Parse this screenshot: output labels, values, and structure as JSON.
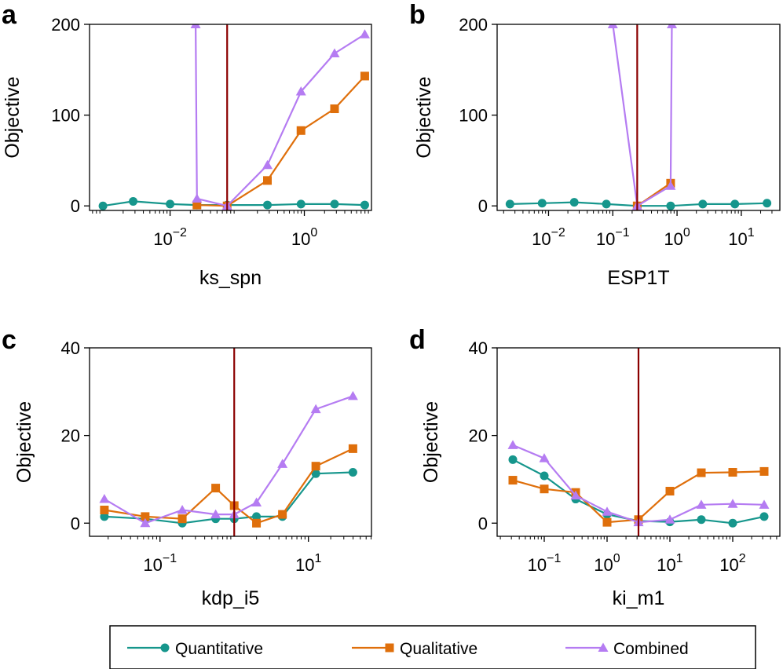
{
  "colors": {
    "quantitative": "#16968c",
    "qualitative": "#df6f0b",
    "combined": "#b57cf2",
    "vline": "#8b0000",
    "axis": "#000000"
  },
  "legend": {
    "entries": [
      {
        "name": "Quantitative",
        "marker": "circle",
        "color": "#16968c"
      },
      {
        "name": "Qualitative",
        "marker": "square",
        "color": "#df6f0b"
      },
      {
        "name": "Combined",
        "marker": "triangle",
        "color": "#b57cf2"
      }
    ]
  },
  "chart_data": [
    {
      "panel": "a",
      "type": "line",
      "xscale": "log",
      "xlabel": "ks_spn",
      "ylabel": "Objective",
      "xlim_log10": [
        -3.2,
        1.0
      ],
      "ylim": [
        -5,
        200
      ],
      "yticks": [
        0,
        100,
        200
      ],
      "xticks": [
        {
          "exp": -2,
          "label": "10^-2"
        },
        {
          "exp": 0,
          "label": "10^0"
        }
      ],
      "vline_log10": -1.15,
      "series": [
        {
          "name": "Quantitative",
          "marker": "circle",
          "x_log10": [
            -3.0,
            -2.55,
            -2.0,
            -1.6,
            -1.15,
            -0.55,
            -0.05,
            0.45,
            0.9
          ],
          "y": [
            0,
            5,
            2,
            1,
            1,
            1,
            2,
            2,
            1
          ]
        },
        {
          "name": "Qualitative",
          "marker": "square",
          "x_log10": [
            -1.6,
            -1.15,
            -0.55,
            -0.05,
            0.45,
            0.9
          ],
          "y": [
            1,
            0,
            28,
            83,
            107,
            143
          ]
        },
        {
          "name": "Combined",
          "marker": "triangle",
          "x_log10": [
            -1.62,
            -1.6,
            -1.15,
            -0.55,
            -0.05,
            0.45,
            0.9
          ],
          "y": [
            200,
            8,
            0,
            45,
            126,
            168,
            189
          ]
        }
      ]
    },
    {
      "panel": "b",
      "type": "line",
      "xscale": "log",
      "xlabel": "ESP1T",
      "ylabel": "Objective",
      "xlim_log10": [
        -2.8,
        1.6
      ],
      "ylim": [
        -5,
        200
      ],
      "yticks": [
        0,
        100,
        200
      ],
      "xticks": [
        {
          "exp": -2,
          "label": "10^-2"
        },
        {
          "exp": -1,
          "label": "10^-1"
        },
        {
          "exp": 0,
          "label": "10^0"
        },
        {
          "exp": 1,
          "label": "10^1"
        }
      ],
      "vline_log10": -0.62,
      "series": [
        {
          "name": "Quantitative",
          "marker": "circle",
          "x_log10": [
            -2.6,
            -2.1,
            -1.6,
            -1.1,
            -0.62,
            -0.1,
            0.4,
            0.9,
            1.4
          ],
          "y": [
            2,
            3,
            4,
            2,
            0,
            0,
            2,
            2,
            3
          ]
        },
        {
          "name": "Qualitative",
          "marker": "square",
          "x_log10": [
            -0.62,
            -0.1
          ],
          "y": [
            0,
            25
          ]
        },
        {
          "name": "Combined",
          "marker": "triangle",
          "x_log10": [
            -1.0,
            -0.62,
            -0.1,
            -0.08
          ],
          "y": [
            200,
            0,
            22,
            200
          ]
        }
      ]
    },
    {
      "panel": "c",
      "type": "line",
      "xscale": "log",
      "xlabel": "kdp_i5",
      "ylabel": "Objective",
      "xlim_log10": [
        -1.95,
        1.85
      ],
      "ylim": [
        -3,
        40
      ],
      "yticks": [
        0,
        20,
        40
      ],
      "xticks": [
        {
          "exp": -1,
          "label": "10^-1"
        },
        {
          "exp": 1,
          "label": "10^1"
        }
      ],
      "vline_log10": 0.0,
      "series": [
        {
          "name": "Quantitative",
          "marker": "circle",
          "x_log10": [
            -1.75,
            -1.2,
            -0.7,
            -0.25,
            0.0,
            0.3,
            0.65,
            1.1,
            1.6
          ],
          "y": [
            1.5,
            1.0,
            0.0,
            1.0,
            1.0,
            1.5,
            1.5,
            11.3,
            11.6
          ]
        },
        {
          "name": "Qualitative",
          "marker": "square",
          "x_log10": [
            -1.75,
            -1.2,
            -0.7,
            -0.25,
            0.0,
            0.3,
            0.65,
            1.1,
            1.6
          ],
          "y": [
            3.0,
            1.5,
            1.0,
            8.0,
            4.0,
            0.0,
            2.0,
            13.0,
            17.0
          ]
        },
        {
          "name": "Combined",
          "marker": "triangle",
          "x_log10": [
            -1.75,
            -1.2,
            -0.7,
            -0.25,
            0.0,
            0.3,
            0.65,
            1.1,
            1.6
          ],
          "y": [
            5.5,
            0.0,
            3.0,
            2.0,
            2.0,
            4.7,
            13.5,
            26.0,
            29.0
          ]
        }
      ]
    },
    {
      "panel": "d",
      "type": "line",
      "xscale": "log",
      "xlabel": "ki_m1",
      "ylabel": "Objective",
      "xlim_log10": [
        -1.75,
        2.75
      ],
      "ylim": [
        -3,
        40
      ],
      "yticks": [
        0,
        20,
        40
      ],
      "xticks": [
        {
          "exp": -1,
          "label": "10^-1"
        },
        {
          "exp": 0,
          "label": "10^0"
        },
        {
          "exp": 1,
          "label": "10^1"
        },
        {
          "exp": 2,
          "label": "10^2"
        }
      ],
      "vline_log10": 0.5,
      "series": [
        {
          "name": "Quantitative",
          "marker": "circle",
          "x_log10": [
            -1.5,
            -1.0,
            -0.5,
            0.0,
            0.5,
            1.0,
            1.5,
            2.0,
            2.5
          ],
          "y": [
            14.5,
            10.8,
            5.5,
            2.0,
            0.5,
            0.3,
            0.8,
            0.0,
            1.5
          ]
        },
        {
          "name": "Qualitative",
          "marker": "square",
          "x_log10": [
            -1.5,
            -1.0,
            -0.5,
            0.0,
            0.5,
            1.0,
            1.5,
            2.0,
            2.5
          ],
          "y": [
            9.8,
            7.8,
            7.0,
            0.2,
            0.8,
            7.3,
            11.5,
            11.6,
            11.8
          ]
        },
        {
          "name": "Combined",
          "marker": "triangle",
          "x_log10": [
            -1.5,
            -1.0,
            -0.5,
            0.0,
            0.5,
            1.0,
            1.5,
            2.0,
            2.5
          ],
          "y": [
            17.8,
            14.8,
            6.3,
            2.6,
            0.2,
            0.8,
            4.2,
            4.4,
            4.2
          ]
        }
      ]
    }
  ]
}
